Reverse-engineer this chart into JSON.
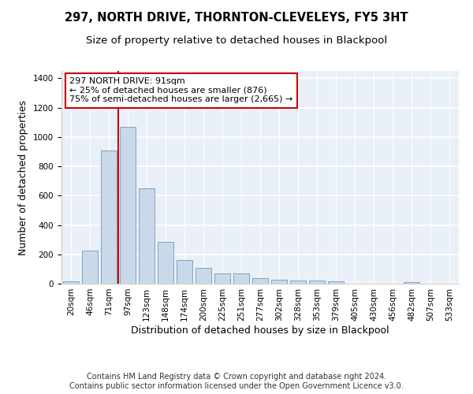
{
  "title_line1": "297, NORTH DRIVE, THORNTON-CLEVELEYS, FY5 3HT",
  "title_line2": "Size of property relative to detached houses in Blackpool",
  "xlabel": "Distribution of detached houses by size in Blackpool",
  "ylabel": "Number of detached properties",
  "footer_line1": "Contains HM Land Registry data © Crown copyright and database right 2024.",
  "footer_line2": "Contains public sector information licensed under the Open Government Licence v3.0.",
  "annotation_line1": "297 NORTH DRIVE: 91sqm",
  "annotation_line2": "← 25% of detached houses are smaller (876)",
  "annotation_line3": "75% of semi-detached houses are larger (2,665) →",
  "bar_labels": [
    "20sqm",
    "46sqm",
    "71sqm",
    "97sqm",
    "123sqm",
    "148sqm",
    "174sqm",
    "200sqm",
    "225sqm",
    "251sqm",
    "277sqm",
    "302sqm",
    "328sqm",
    "353sqm",
    "379sqm",
    "405sqm",
    "430sqm",
    "456sqm",
    "482sqm",
    "507sqm",
    "533sqm"
  ],
  "bar_values": [
    18,
    225,
    910,
    1070,
    650,
    285,
    160,
    105,
    70,
    70,
    37,
    27,
    22,
    22,
    15,
    0,
    0,
    0,
    10,
    0,
    0
  ],
  "bar_color": "#c9d9ea",
  "bar_edge_color": "#5a8ab0",
  "vline_x_index": 2.5,
  "vline_color": "#cc0000",
  "annotation_box_color": "#cc0000",
  "ylim": [
    0,
    1450
  ],
  "yticks": [
    0,
    200,
    400,
    600,
    800,
    1000,
    1200,
    1400
  ],
  "background_color": "#eaf0f8",
  "grid_color": "#ffffff",
  "title_fontsize": 10.5,
  "subtitle_fontsize": 9.5,
  "axis_label_fontsize": 9,
  "tick_fontsize": 7.5,
  "footer_fontsize": 7.0,
  "ann_fontsize": 8.0
}
